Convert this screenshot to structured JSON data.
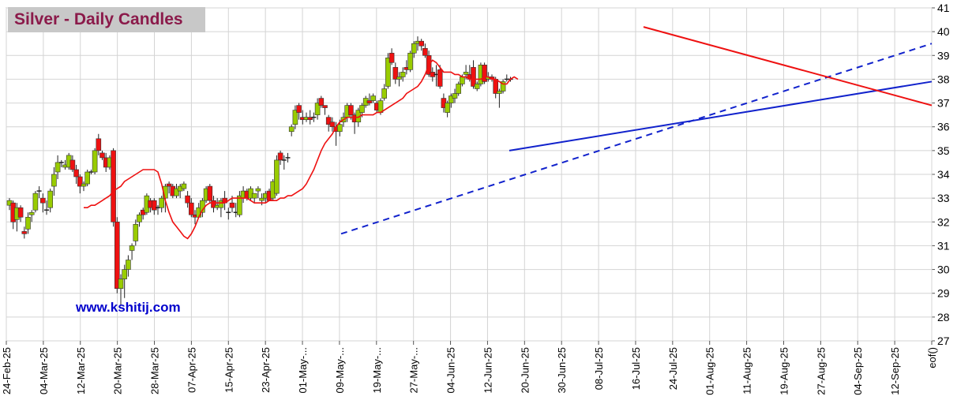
{
  "title": "Silver - Daily Candles",
  "watermark": "www.kshitij.com",
  "colors": {
    "up": "#99cc00",
    "down": "#ee1111",
    "flat": "#222222",
    "ma": "#ee1111",
    "trend_blue": "#1122cc",
    "trend_red": "#ee1111",
    "grid": "#d4d4d4",
    "axis_text": "#000000"
  },
  "chart_data": {
    "type": "candlestick",
    "title": "Silver - Daily Candles",
    "ylim": [
      27,
      41
    ],
    "y_ticks": [
      27,
      28,
      29,
      30,
      31,
      32,
      33,
      34,
      35,
      36,
      37,
      38,
      39,
      40,
      41
    ],
    "y_axis_side": "right",
    "grid": true,
    "x_tick_labels": [
      "24-Feb-25",
      "04-Mar-25",
      "12-Mar-25",
      "20-Mar-25",
      "28-Mar-25",
      "07-Apr-25",
      "15-Apr-25",
      "23-Apr-25",
      "01-May-...",
      "09-May-...",
      "19-May-...",
      "27-May-...",
      "04-Jun-25",
      "12-Jun-25",
      "20-Jun-25",
      "30-Jun-25",
      "08-Jul-25",
      "16-Jul-25",
      "24-Jul-25",
      "01-Aug-25",
      "11-Aug-25",
      "19-Aug-25",
      "27-Aug-25",
      "04-Sep-25",
      "12-Sep-25",
      "eof()"
    ],
    "candles": [
      [
        32.7,
        33.0,
        32.5,
        32.9
      ],
      [
        32.8,
        32.9,
        31.7,
        32.0
      ],
      [
        32.1,
        32.8,
        31.6,
        32.6
      ],
      [
        32.6,
        32.7,
        32.0,
        32.2
      ],
      [
        31.6,
        31.8,
        31.3,
        31.5
      ],
      [
        31.7,
        32.4,
        31.5,
        32.2
      ],
      [
        32.3,
        32.5,
        32.0,
        32.4
      ],
      [
        32.5,
        33.3,
        32.4,
        33.2
      ],
      [
        33.3,
        33.5,
        33.0,
        33.3
      ],
      [
        33.0,
        33.2,
        32.4,
        32.8
      ],
      [
        32.5,
        32.9,
        32.3,
        32.5
      ],
      [
        32.6,
        33.4,
        32.4,
        33.3
      ],
      [
        33.5,
        34.3,
        33.1,
        34.0
      ],
      [
        34.1,
        34.8,
        33.8,
        34.5
      ],
      [
        34.5,
        34.6,
        34.3,
        34.5
      ],
      [
        34.3,
        34.6,
        34.2,
        34.4
      ],
      [
        34.3,
        34.9,
        34.2,
        34.8
      ],
      [
        34.6,
        34.8,
        34.1,
        34.2
      ],
      [
        34.2,
        34.4,
        33.6,
        33.9
      ],
      [
        33.9,
        34.0,
        33.2,
        33.5
      ],
      [
        33.5,
        33.7,
        33.3,
        33.6
      ],
      [
        33.6,
        34.2,
        33.5,
        34.1
      ],
      [
        34.1,
        34.2,
        34.0,
        34.1
      ],
      [
        34.1,
        35.1,
        34.0,
        35.0
      ],
      [
        35.5,
        35.7,
        34.8,
        35.0
      ],
      [
        34.9,
        35.0,
        34.6,
        34.7
      ],
      [
        34.7,
        34.9,
        34.1,
        34.3
      ],
      [
        34.3,
        34.8,
        34.2,
        34.7
      ],
      [
        35.0,
        35.1,
        31.8,
        32.0
      ],
      [
        32.0,
        32.2,
        29.0,
        29.2
      ],
      [
        29.2,
        29.8,
        28.5,
        29.6
      ],
      [
        29.6,
        30.2,
        28.8,
        30.0
      ],
      [
        30.0,
        30.6,
        29.7,
        30.4
      ],
      [
        30.8,
        31.1,
        30.4,
        31.0
      ],
      [
        31.2,
        32.1,
        31.0,
        31.9
      ],
      [
        32.0,
        32.4,
        31.8,
        32.3
      ],
      [
        32.5,
        32.6,
        32.1,
        32.3
      ],
      [
        32.4,
        33.2,
        32.3,
        33.1
      ],
      [
        32.9,
        33.0,
        32.4,
        32.6
      ],
      [
        32.9,
        33.0,
        32.3,
        32.5
      ],
      [
        32.6,
        32.7,
        32.3,
        32.6
      ],
      [
        32.6,
        33.1,
        32.4,
        33.0
      ],
      [
        33.0,
        33.6,
        32.4,
        33.5
      ],
      [
        33.6,
        33.7,
        33.2,
        33.5
      ],
      [
        33.5,
        33.6,
        33.0,
        33.1
      ],
      [
        33.1,
        33.6,
        33.0,
        33.4
      ],
      [
        33.3,
        33.6,
        33.0,
        33.5
      ],
      [
        33.4,
        33.7,
        33.3,
        33.6
      ],
      [
        33.1,
        33.3,
        32.6,
        32.8
      ],
      [
        32.8,
        33.0,
        32.2,
        32.3
      ],
      [
        32.3,
        32.5,
        31.9,
        32.2
      ],
      [
        32.2,
        32.8,
        32.2,
        32.6
      ],
      [
        32.4,
        33.0,
        32.2,
        32.9
      ],
      [
        32.9,
        33.5,
        32.8,
        33.4
      ],
      [
        33.5,
        33.6,
        32.8,
        32.9
      ],
      [
        32.9,
        33.1,
        32.4,
        32.6
      ],
      [
        32.6,
        33.0,
        32.5,
        32.7
      ],
      [
        32.6,
        33.0,
        32.2,
        32.9
      ],
      [
        33.0,
        33.3,
        32.5,
        32.8
      ],
      [
        32.4,
        32.6,
        32.1,
        32.4
      ],
      [
        32.8,
        33.1,
        32.4,
        32.6
      ],
      [
        32.4,
        32.8,
        32.2,
        32.4
      ],
      [
        32.3,
        33.3,
        32.2,
        33.1
      ],
      [
        33.0,
        33.5,
        32.8,
        33.3
      ],
      [
        33.3,
        33.4,
        32.9,
        33.0
      ],
      [
        33.0,
        33.5,
        32.9,
        33.4
      ],
      [
        33.0,
        33.2,
        32.8,
        33.2
      ],
      [
        33.3,
        33.5,
        33.0,
        33.4
      ],
      [
        32.9,
        33.2,
        32.7,
        33.0
      ],
      [
        33.0,
        33.3,
        32.8,
        33.2
      ],
      [
        33.3,
        33.4,
        32.9,
        32.9
      ],
      [
        33.0,
        33.8,
        32.9,
        33.7
      ],
      [
        33.2,
        34.8,
        33.1,
        34.6
      ],
      [
        34.9,
        35.0,
        34.4,
        34.6
      ],
      [
        34.6,
        34.8,
        34.2,
        34.6
      ],
      [
        34.7,
        34.9,
        34.5,
        34.7
      ],
      [
        35.8,
        36.1,
        35.6,
        36.0
      ],
      [
        36.1,
        36.9,
        35.9,
        36.7
      ],
      [
        36.9,
        37.0,
        36.3,
        36.6
      ],
      [
        36.4,
        36.7,
        36.1,
        36.3
      ],
      [
        36.3,
        36.6,
        36.2,
        36.4
      ],
      [
        36.4,
        36.7,
        36.1,
        36.3
      ],
      [
        36.4,
        36.6,
        36.2,
        36.4
      ],
      [
        36.5,
        37.2,
        36.3,
        37.0
      ],
      [
        37.2,
        37.3,
        36.8,
        36.9
      ],
      [
        36.9,
        36.9,
        36.5,
        36.8
      ],
      [
        36.4,
        36.5,
        35.8,
        36.1
      ],
      [
        36.2,
        36.4,
        35.8,
        36.0
      ],
      [
        36.0,
        36.2,
        35.2,
        35.8
      ],
      [
        35.8,
        36.3,
        35.6,
        36.1
      ],
      [
        36.2,
        36.6,
        36.0,
        36.4
      ],
      [
        36.4,
        37.0,
        36.2,
        36.9
      ],
      [
        36.9,
        37.0,
        36.3,
        36.5
      ],
      [
        36.5,
        36.6,
        35.7,
        36.2
      ],
      [
        36.2,
        36.8,
        36.0,
        36.7
      ],
      [
        36.6,
        37.0,
        36.4,
        36.9
      ],
      [
        36.9,
        37.3,
        36.8,
        37.2
      ],
      [
        37.1,
        37.4,
        36.9,
        37.0
      ],
      [
        37.1,
        37.4,
        37.0,
        37.3
      ],
      [
        37.0,
        37.1,
        36.6,
        36.7
      ],
      [
        36.6,
        37.2,
        36.5,
        37.1
      ],
      [
        37.2,
        37.8,
        37.1,
        37.6
      ],
      [
        37.7,
        39.1,
        37.6,
        38.9
      ],
      [
        39.1,
        39.3,
        38.6,
        38.7
      ],
      [
        38.5,
        38.7,
        37.8,
        38.0
      ],
      [
        38.0,
        38.3,
        37.7,
        38.1
      ],
      [
        38.1,
        38.5,
        37.9,
        38.3
      ],
      [
        38.5,
        38.8,
        38.2,
        38.4
      ],
      [
        38.4,
        39.2,
        38.3,
        39.1
      ],
      [
        39.1,
        39.6,
        38.9,
        39.5
      ],
      [
        39.5,
        39.8,
        39.2,
        39.6
      ],
      [
        39.6,
        39.7,
        39.2,
        39.4
      ],
      [
        39.3,
        39.5,
        38.9,
        39.0
      ],
      [
        39.0,
        39.2,
        38.1,
        38.2
      ],
      [
        38.3,
        38.5,
        37.9,
        38.1
      ],
      [
        38.2,
        38.6,
        37.7,
        38.2
      ],
      [
        38.4,
        38.6,
        37.6,
        37.7
      ],
      [
        37.2,
        37.4,
        36.6,
        36.8
      ],
      [
        36.6,
        37.1,
        36.4,
        37.0
      ],
      [
        37.0,
        37.4,
        36.8,
        37.3
      ],
      [
        37.2,
        37.6,
        37.0,
        37.4
      ],
      [
        37.4,
        37.9,
        37.3,
        37.8
      ],
      [
        37.8,
        38.2,
        37.7,
        38.1
      ],
      [
        38.2,
        38.6,
        38.0,
        38.3
      ],
      [
        38.2,
        38.6,
        37.9,
        38.0
      ],
      [
        38.5,
        38.8,
        37.6,
        37.7
      ],
      [
        37.6,
        37.9,
        37.5,
        37.8
      ],
      [
        37.8,
        38.7,
        37.7,
        38.6
      ],
      [
        38.6,
        38.7,
        37.8,
        37.9
      ],
      [
        38.0,
        38.3,
        37.9,
        38.1
      ],
      [
        38.1,
        38.2,
        37.9,
        38.0
      ],
      [
        38.0,
        38.1,
        37.2,
        37.4
      ],
      [
        37.4,
        37.6,
        36.8,
        37.5
      ],
      [
        37.5,
        38.0,
        37.4,
        37.9
      ],
      [
        38.0,
        38.2,
        37.9,
        38.0
      ],
      [
        38.0,
        38.1,
        37.9,
        38.0
      ]
    ],
    "series": [
      {
        "values": [
          32.6,
          32.6,
          32.7,
          32.7,
          32.8,
          32.9,
          33.0,
          33.1,
          33.3,
          33.4,
          33.5,
          33.7,
          33.8,
          33.9,
          34.0,
          34.1,
          34.2,
          34.2,
          34.2,
          34.2,
          34.1,
          33.6,
          32.9,
          32.4,
          32.0,
          31.8,
          31.6,
          31.4,
          31.3,
          31.5,
          31.8,
          32.2,
          32.5,
          32.7,
          32.8,
          32.8,
          32.8,
          32.8,
          32.8,
          32.9,
          33.0,
          33.0,
          33.0,
          33.0,
          33.0,
          32.9,
          32.8,
          32.8,
          32.8,
          32.8,
          32.9,
          32.9,
          32.9,
          33.0,
          33.0,
          33.1,
          33.1,
          33.2,
          33.3,
          33.4,
          33.6,
          33.9,
          34.2,
          34.6,
          35.0,
          35.3,
          35.5,
          35.7,
          36.0,
          36.2,
          36.3,
          36.4,
          36.4,
          36.4,
          36.4,
          36.5,
          36.5,
          36.5,
          36.5,
          36.6,
          36.6,
          36.7,
          36.8,
          36.9,
          37.0,
          37.1,
          37.2,
          37.4,
          37.5,
          37.6,
          37.7,
          37.9,
          38.2,
          38.6,
          38.8,
          38.7,
          38.5,
          38.3,
          38.3,
          38.3,
          38.2,
          38.2,
          38.1,
          38.1,
          38.0,
          38.0,
          38.0,
          38.0,
          38.1,
          38.1,
          38.0,
          38.0,
          37.9,
          37.8,
          37.8,
          38.0,
          38.1,
          38.0
        ]
      }
    ],
    "trendlines": [
      {
        "style": "solid",
        "color": "blue",
        "from": [
          35.0
        ],
        "to": [
          37.9
        ]
      },
      {
        "style": "dashed",
        "color": "blue",
        "from": [
          31.5
        ],
        "to": [
          39.5
        ]
      },
      {
        "style": "solid",
        "color": "red",
        "from": [
          40.2
        ],
        "to": [
          36.9
        ]
      }
    ]
  }
}
